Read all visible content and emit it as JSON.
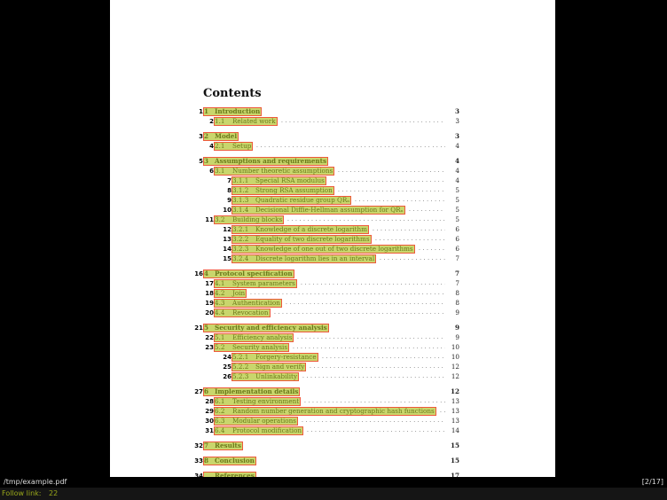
{
  "document": {
    "heading": "Contents",
    "toc": [
      {
        "hint": "1",
        "num": "1",
        "title": "Introduction",
        "page": "3",
        "level": 0,
        "group_start": true
      },
      {
        "hint": "2",
        "num": "1.1",
        "title": "Related work",
        "page": "3",
        "level": 1
      },
      {
        "hint": "3",
        "num": "2",
        "title": "Model",
        "page": "3",
        "level": 0,
        "group_start": true
      },
      {
        "hint": "4",
        "num": "2.1",
        "title": "Setup",
        "page": "4",
        "level": 1
      },
      {
        "hint": "5",
        "num": "3",
        "title": "Assumptions and requirements",
        "page": "4",
        "level": 0,
        "group_start": true
      },
      {
        "hint": "6",
        "num": "3.1",
        "title": "Number theoretic assumptions",
        "page": "4",
        "level": 1
      },
      {
        "hint": "7",
        "num": "3.1.1",
        "title": "Special RSA modulus",
        "page": "4",
        "level": 2
      },
      {
        "hint": "8",
        "num": "3.1.2",
        "title": "Strong RSA assumption",
        "page": "5",
        "level": 2
      },
      {
        "hint": "9",
        "num": "3.1.3",
        "title": "Quadratic residue group QRₙ",
        "page": "5",
        "level": 2
      },
      {
        "hint": "10",
        "num": "3.1.4",
        "title": "Decisional Diffie-Hellman assumption for QRₙ",
        "page": "5",
        "level": 2
      },
      {
        "hint": "11",
        "num": "3.2",
        "title": "Building blocks",
        "page": "5",
        "level": 1
      },
      {
        "hint": "12",
        "num": "3.2.1",
        "title": "Knowledge of a discrete logarithm",
        "page": "6",
        "level": 2
      },
      {
        "hint": "13",
        "num": "3.2.2",
        "title": "Equality of two discrete logarithms",
        "page": "6",
        "level": 2
      },
      {
        "hint": "14",
        "num": "3.2.3",
        "title": "Knowledge of one out of two discrete logarithms",
        "page": "6",
        "level": 2
      },
      {
        "hint": "15",
        "num": "3.2.4",
        "title": "Discrete logarithm lies in an interval",
        "page": "7",
        "level": 2
      },
      {
        "hint": "16",
        "num": "4",
        "title": "Protocol specification",
        "page": "7",
        "level": 0,
        "group_start": true
      },
      {
        "hint": "17",
        "num": "4.1",
        "title": "System parameters",
        "page": "7",
        "level": 1
      },
      {
        "hint": "18",
        "num": "4.2",
        "title": "Join",
        "page": "8",
        "level": 1
      },
      {
        "hint": "19",
        "num": "4.3",
        "title": "Authentication",
        "page": "8",
        "level": 1
      },
      {
        "hint": "20",
        "num": "4.4",
        "title": "Revocation",
        "page": "9",
        "level": 1
      },
      {
        "hint": "21",
        "num": "5",
        "title": "Security and efficiency analysis",
        "page": "9",
        "level": 0,
        "group_start": true
      },
      {
        "hint": "22",
        "num": "5.1",
        "title": "Efficiency analysis",
        "page": "9",
        "level": 1
      },
      {
        "hint": "23",
        "num": "5.2",
        "title": "Security analysis",
        "page": "10",
        "level": 1
      },
      {
        "hint": "24",
        "num": "5.2.1",
        "title": "Forgery-resistance",
        "page": "10",
        "level": 2
      },
      {
        "hint": "25",
        "num": "5.2.2",
        "title": "Sign and verify",
        "page": "12",
        "level": 2
      },
      {
        "hint": "26",
        "num": "5.2.3",
        "title": "Unlinkability",
        "page": "12",
        "level": 2
      },
      {
        "hint": "27",
        "num": "6",
        "title": "Implementation details",
        "page": "12",
        "level": 0,
        "group_start": true
      },
      {
        "hint": "28",
        "num": "6.1",
        "title": "Testing environment",
        "page": "13",
        "level": 1
      },
      {
        "hint": "29",
        "num": "6.2",
        "title": "Random number generation and cryptographic hash functions",
        "page": "13",
        "level": 1
      },
      {
        "hint": "30",
        "num": "6.3",
        "title": "Modular operations",
        "page": "13",
        "level": 1
      },
      {
        "hint": "31",
        "num": "6.4",
        "title": "Protocol modification",
        "page": "14",
        "level": 1
      },
      {
        "hint": "32",
        "num": "7",
        "title": "Results",
        "page": "15",
        "level": 0,
        "group_start": true
      },
      {
        "hint": "33",
        "num": "8",
        "title": "Conclusion",
        "page": "15",
        "level": 0,
        "group_start": true
      },
      {
        "hint": "34",
        "num": "",
        "title": "References",
        "page": "17",
        "level": 0,
        "group_start": true
      }
    ]
  },
  "statusbar": {
    "file": "/tmp/example.pdf",
    "page_indicator": "[2/17]"
  },
  "inputbar": {
    "prompt": "Follow link:",
    "value": "22"
  },
  "colors": {
    "link_fill": "#c9d66c",
    "link_border": "#ee5a3c",
    "link_text": "#6b7a1a",
    "input_text": "#9aa81a"
  }
}
